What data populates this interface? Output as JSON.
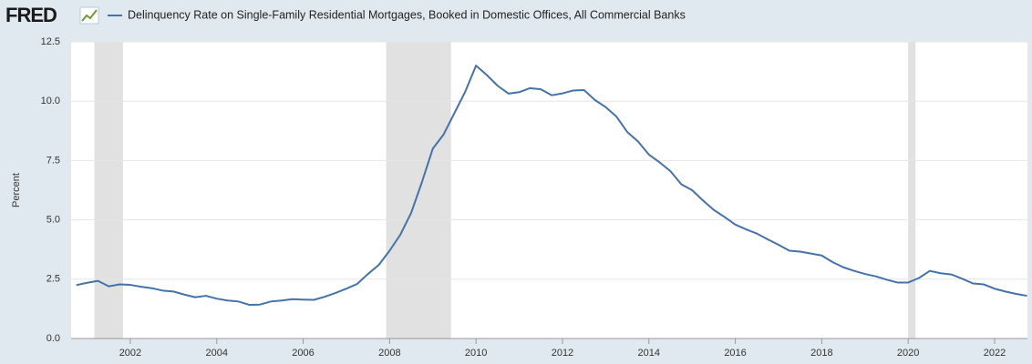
{
  "chart_data": {
    "type": "line",
    "logo": "FRED",
    "ylabel": "Percent",
    "x": [
      2000.75,
      2001,
      2001.25,
      2001.5,
      2001.75,
      2002,
      2002.25,
      2002.5,
      2002.75,
      2003,
      2003.25,
      2003.5,
      2003.75,
      2004,
      2004.25,
      2004.5,
      2004.75,
      2005,
      2005.25,
      2005.5,
      2005.75,
      2006,
      2006.25,
      2006.5,
      2006.75,
      2007,
      2007.25,
      2007.5,
      2007.75,
      2008,
      2008.25,
      2008.5,
      2008.75,
      2009,
      2009.25,
      2009.5,
      2009.75,
      2010,
      2010.25,
      2010.5,
      2010.75,
      2011,
      2011.25,
      2011.5,
      2011.75,
      2012,
      2012.25,
      2012.5,
      2012.75,
      2013,
      2013.25,
      2013.5,
      2013.75,
      2014,
      2014.25,
      2014.5,
      2014.75,
      2015,
      2015.25,
      2015.5,
      2015.75,
      2016,
      2016.25,
      2016.5,
      2016.75,
      2017,
      2017.25,
      2017.5,
      2017.75,
      2018,
      2018.25,
      2018.5,
      2018.75,
      2019,
      2019.25,
      2019.5,
      2019.75,
      2020,
      2020.25,
      2020.5,
      2020.75,
      2021,
      2021.25,
      2021.5,
      2021.75,
      2022,
      2022.25,
      2022.5,
      2022.75
    ],
    "series": [
      {
        "name": "Delinquency Rate on Single-Family Residential Mortgages, Booked in Domestic Offices, All Commercial Banks",
        "color": "#4572a7",
        "values": [
          2.25,
          2.35,
          2.43,
          2.2,
          2.28,
          2.26,
          2.18,
          2.12,
          2.02,
          1.98,
          1.85,
          1.74,
          1.8,
          1.68,
          1.6,
          1.56,
          1.42,
          1.43,
          1.56,
          1.6,
          1.66,
          1.64,
          1.63,
          1.76,
          1.92,
          2.1,
          2.3,
          2.72,
          3.1,
          3.7,
          4.38,
          5.3,
          6.6,
          8.0,
          8.6,
          9.5,
          10.4,
          11.5,
          11.1,
          10.65,
          10.32,
          10.38,
          10.55,
          10.5,
          10.25,
          10.33,
          10.45,
          10.47,
          10.05,
          9.75,
          9.35,
          8.7,
          8.3,
          7.75,
          7.42,
          7.05,
          6.5,
          6.25,
          5.82,
          5.42,
          5.12,
          4.8,
          4.6,
          4.42,
          4.18,
          3.95,
          3.7,
          3.66,
          3.58,
          3.5,
          3.22,
          3.0,
          2.85,
          2.72,
          2.62,
          2.48,
          2.36,
          2.36,
          2.55,
          2.85,
          2.75,
          2.7,
          2.52,
          2.32,
          2.28,
          2.1,
          1.98,
          1.88,
          1.8
        ]
      }
    ],
    "shaded_ranges": [
      [
        2001.17,
        2001.83
      ],
      [
        2007.92,
        2009.42
      ],
      [
        2020.0,
        2020.17
      ]
    ],
    "shade_color": "#e1e1e1",
    "xlim": [
      2000.63,
      2022.76
    ],
    "xticks": [
      2002,
      2004,
      2006,
      2008,
      2010,
      2012,
      2014,
      2016,
      2018,
      2020,
      2022
    ],
    "ylim": [
      0,
      12.5
    ],
    "yticks": [
      {
        "value": 0,
        "label": "0.0"
      },
      2.5,
      {
        "value": 5,
        "label": "5.0"
      },
      7.5,
      {
        "value": 10,
        "label": "10.0"
      },
      12.5
    ],
    "grid": true
  }
}
